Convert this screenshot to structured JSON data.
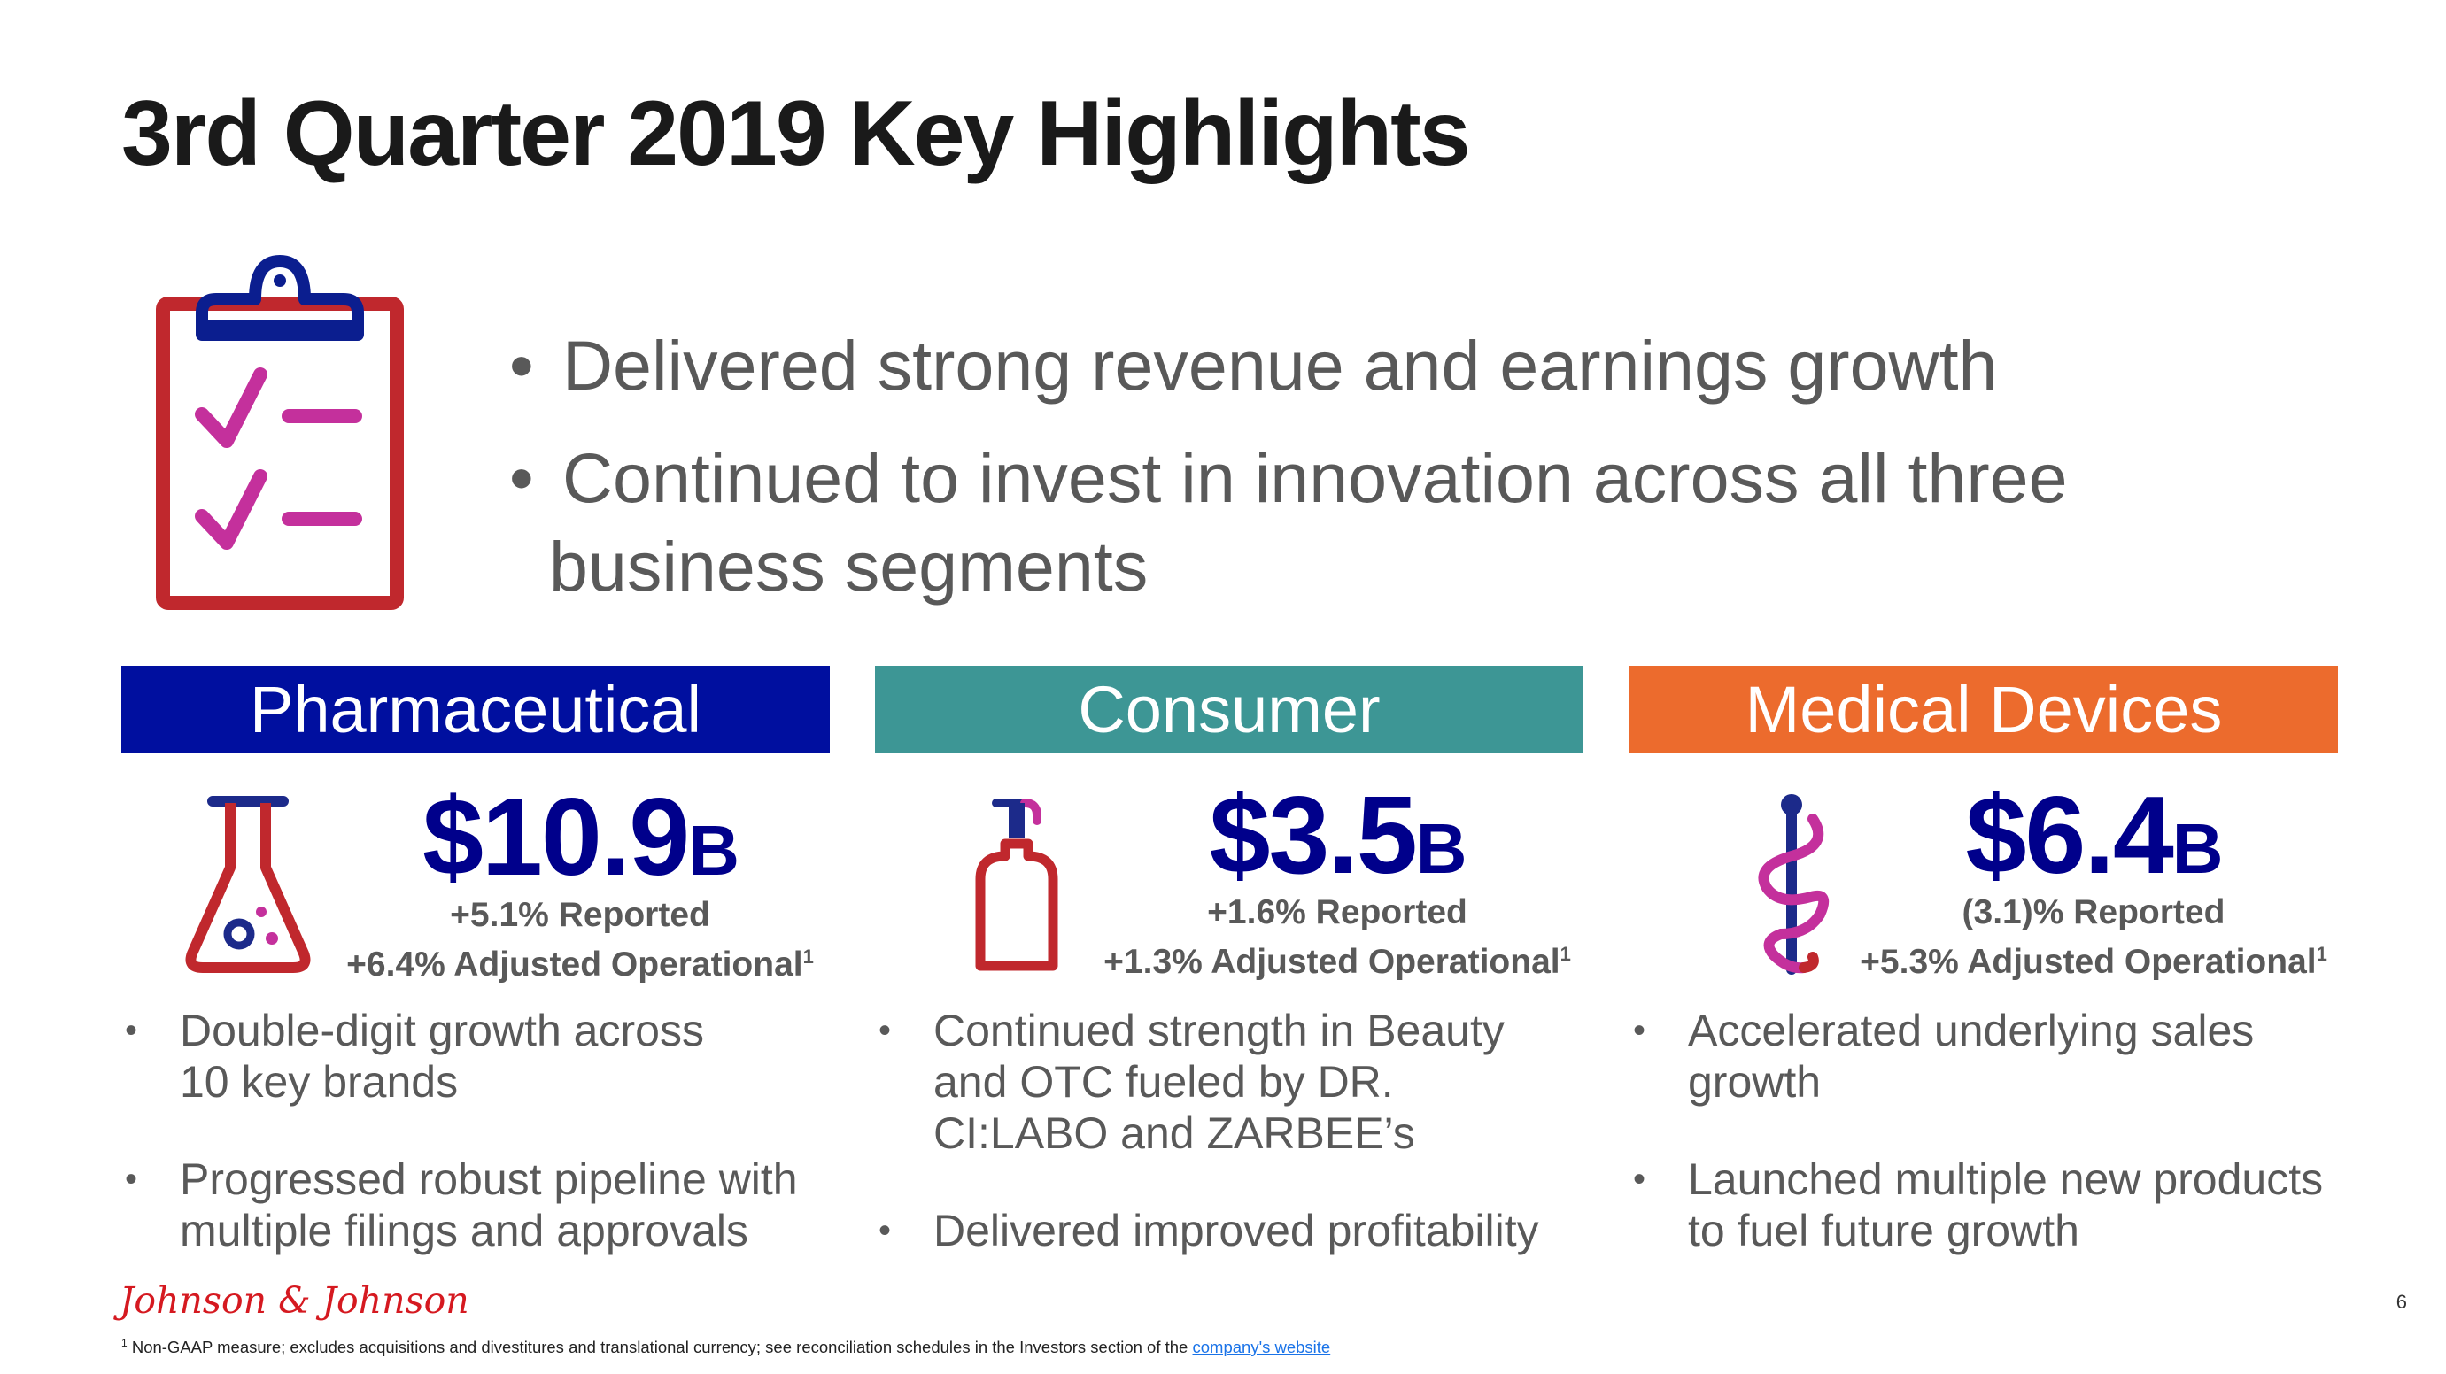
{
  "title": "3rd Quarter 2019 Key Highlights",
  "intro": {
    "bullet1": "Delivered strong revenue and earnings growth",
    "bullet2_line1": "Continued to invest in innovation across all three",
    "bullet2_line2": "business segments",
    "bullet_glyph": "•"
  },
  "segments": [
    {
      "name": "Pharmaceutical",
      "color": "#000f9f",
      "icon": "flask-icon",
      "value": "$10.9",
      "unit": "B",
      "reported": "+5.1% Reported",
      "adjusted": "+6.4% Adjusted Operational",
      "footnote_ref": "1",
      "bullets": [
        "Double-digit growth across 10 key brands",
        "Progressed robust pipeline with multiple filings and approvals"
      ]
    },
    {
      "name": "Consumer",
      "color": "#3d9695",
      "icon": "pump-bottle-icon",
      "value": "$3.5",
      "unit": "B",
      "reported": "+1.6% Reported",
      "adjusted": "+1.3% Adjusted Operational",
      "footnote_ref": "1",
      "bullets": [
        "Continued strength in Beauty and OTC fueled by DR. CI:LABO and ZARBEE’s",
        "Delivered improved profitability"
      ]
    },
    {
      "name": "Medical Devices",
      "color": "#ec6b2d",
      "icon": "caduceus-icon",
      "value": "$6.4",
      "unit": "B",
      "reported": "(3.1)% Reported",
      "adjusted": "+5.3% Adjusted Operational",
      "footnote_ref": "1",
      "bullets": [
        "Accelerated underlying sales growth",
        "Launched multiple new products to fuel future growth"
      ]
    }
  ],
  "logo_text": "Johnson & Johnson",
  "page_number": "6",
  "footnote": {
    "marker": "1",
    "text": "Non-GAAP measure; excludes acquisitions and divestitures and translational currency; see reconciliation schedules in the Investors section of the ",
    "link_text": "company's website"
  },
  "colors": {
    "title": "#1a1a1a",
    "body_text": "#595959",
    "value_blue": "#00008b",
    "clipboard_red": "#c0282d",
    "clip_navy": "#0b1e8f",
    "check_magenta": "#c4309c"
  }
}
